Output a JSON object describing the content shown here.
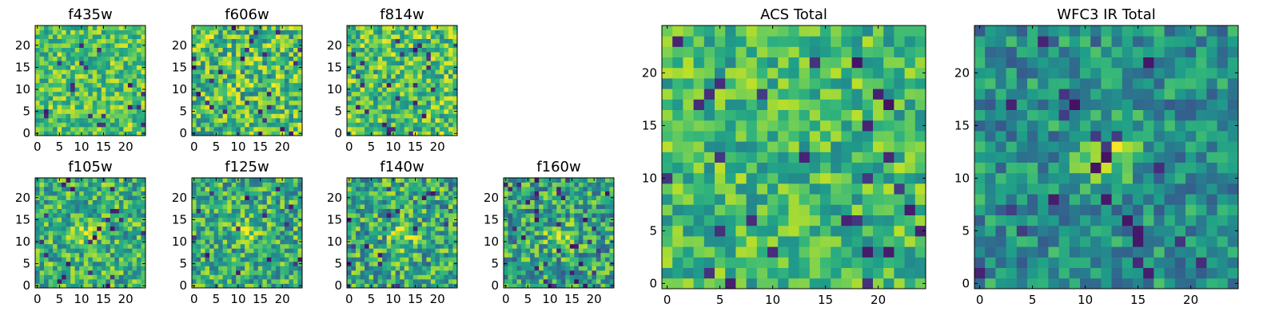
{
  "colormap": "viridis",
  "colors": {
    "dark": "#440154",
    "mid": "#21918c",
    "light": "#5ec962",
    "bright": "#fde725"
  },
  "chart_data": [
    {
      "type": "heatmap",
      "title": "f435w",
      "grid": [
        25,
        25
      ],
      "xlim": [
        0,
        24
      ],
      "ylim": [
        0,
        24
      ],
      "xticks": [
        "0",
        "5",
        "10",
        "15",
        "20"
      ],
      "yticks": [
        "0",
        "5",
        "10",
        "15",
        "20"
      ],
      "pattern": "noise",
      "center": [
        11,
        11
      ],
      "strength": 0,
      "mean": 0.72,
      "spread": 0.24
    },
    {
      "type": "heatmap",
      "title": "f606w",
      "grid": [
        25,
        25
      ],
      "xlim": [
        0,
        24
      ],
      "ylim": [
        0,
        24
      ],
      "xticks": [
        "0",
        "5",
        "10",
        "15",
        "20"
      ],
      "yticks": [
        "0",
        "5",
        "10",
        "15",
        "20"
      ],
      "pattern": "noise",
      "center": [
        11,
        11
      ],
      "strength": 0,
      "mean": 0.7,
      "spread": 0.3
    },
    {
      "type": "heatmap",
      "title": "f814w",
      "grid": [
        25,
        25
      ],
      "xlim": [
        0,
        24
      ],
      "ylim": [
        0,
        24
      ],
      "xticks": [
        "0",
        "5",
        "10",
        "15",
        "20"
      ],
      "yticks": [
        "0",
        "5",
        "10",
        "15",
        "20"
      ],
      "pattern": "noise",
      "center": [
        11,
        11
      ],
      "strength": 0,
      "mean": 0.7,
      "spread": 0.28
    },
    {
      "type": "heatmap",
      "title": "f105w",
      "grid": [
        25,
        25
      ],
      "xlim": [
        0,
        24
      ],
      "ylim": [
        0,
        24
      ],
      "xticks": [
        "0",
        "5",
        "10",
        "15",
        "20"
      ],
      "yticks": [
        "0",
        "5",
        "10",
        "15",
        "20"
      ],
      "pattern": "source",
      "center": [
        11,
        12
      ],
      "strength": 0.22,
      "mean": 0.64,
      "spread": 0.27
    },
    {
      "type": "heatmap",
      "title": "f125w",
      "grid": [
        25,
        25
      ],
      "xlim": [
        0,
        24
      ],
      "ylim": [
        0,
        24
      ],
      "xticks": [
        "0",
        "5",
        "10",
        "15",
        "20"
      ],
      "yticks": [
        "0",
        "5",
        "10",
        "15",
        "20"
      ],
      "pattern": "source",
      "center": [
        12,
        13
      ],
      "strength": 0.22,
      "mean": 0.62,
      "spread": 0.28
    },
    {
      "type": "heatmap",
      "title": "f140w",
      "grid": [
        25,
        25
      ],
      "xlim": [
        0,
        24
      ],
      "ylim": [
        0,
        24
      ],
      "xticks": [
        "0",
        "5",
        "10",
        "15",
        "20"
      ],
      "yticks": [
        "0",
        "5",
        "10",
        "15",
        "20"
      ],
      "pattern": "source",
      "center": [
        12,
        11
      ],
      "strength": 0.24,
      "mean": 0.6,
      "spread": 0.3
    },
    {
      "type": "heatmap",
      "title": "f160w",
      "grid": [
        25,
        25
      ],
      "xlim": [
        0,
        24
      ],
      "ylim": [
        0,
        24
      ],
      "xticks": [
        "0",
        "5",
        "10",
        "15",
        "20"
      ],
      "yticks": [
        "0",
        "5",
        "10",
        "15",
        "20"
      ],
      "pattern": "source",
      "center": [
        12,
        11
      ],
      "strength": 0.32,
      "mean": 0.58,
      "spread": 0.3
    },
    {
      "type": "heatmap",
      "title": "ACS Total",
      "grid": [
        25,
        25
      ],
      "xlim": [
        0,
        24
      ],
      "ylim": [
        0,
        24
      ],
      "xticks": [
        "0",
        "5",
        "10",
        "15",
        "20"
      ],
      "yticks": [
        "0",
        "5",
        "10",
        "15",
        "20"
      ],
      "pattern": "noise",
      "center": [
        11,
        11
      ],
      "strength": 0,
      "mean": 0.68,
      "spread": 0.22
    },
    {
      "type": "heatmap",
      "title": "WFC3 IR Total",
      "grid": [
        25,
        25
      ],
      "xlim": [
        0,
        24
      ],
      "ylim": [
        0,
        24
      ],
      "xticks": [
        "0",
        "5",
        "10",
        "15",
        "20"
      ],
      "yticks": [
        "0",
        "5",
        "10",
        "15",
        "20"
      ],
      "pattern": "source",
      "center": [
        12,
        12
      ],
      "strength": 0.38,
      "mean": 0.5,
      "spread": 0.22
    }
  ]
}
